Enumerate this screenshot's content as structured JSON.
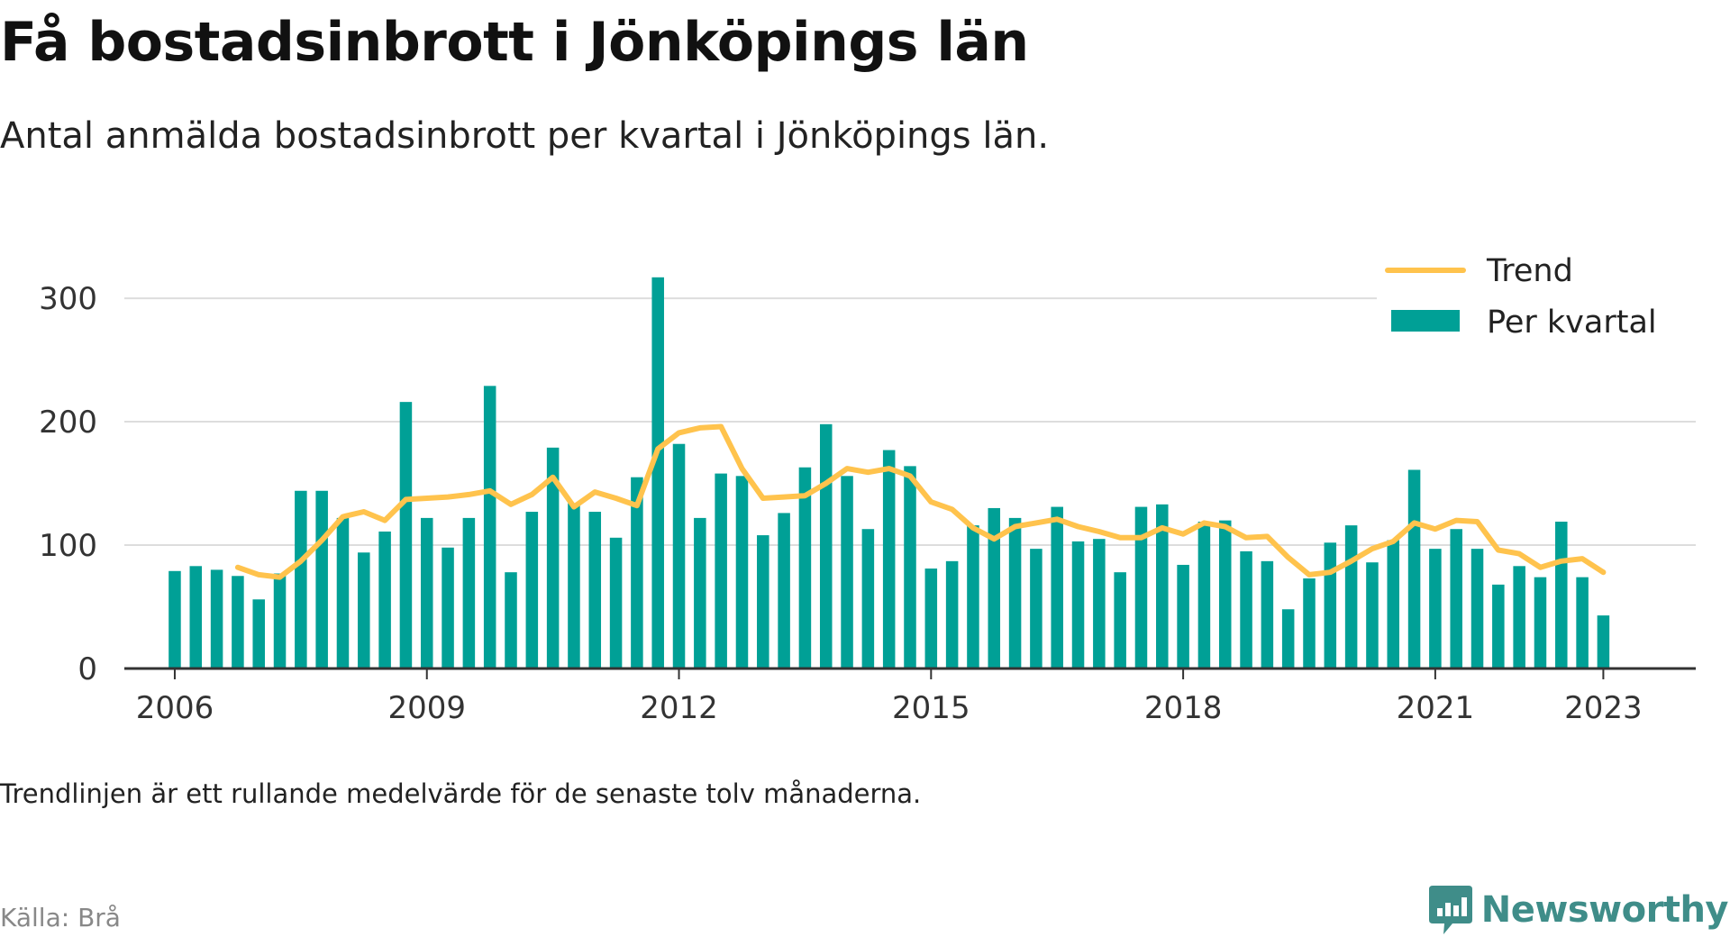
{
  "header": {
    "title": "Få bostadsinbrott i Jönköpings län",
    "subtitle": "Antal anmälda bostadsinbrott per kvartal i Jönköpings län."
  },
  "footer": {
    "note": "Trendlinjen är ett rullande medelvärde för de senaste tolv månaderna.",
    "source": "Källa: Brå",
    "brand": "Newsworthy",
    "brand_icon": "bar-chart-speech-bubble-icon"
  },
  "colors": {
    "bars": "#00a096",
    "trend": "#ffc34d",
    "grid": "#dddddd",
    "axis": "#333333",
    "brand": "#3f8d89"
  },
  "chart_data": {
    "type": "bar",
    "title": "Få bostadsinbrott i Jönköpings län",
    "subtitle": "Antal anmälda bostadsinbrott per kvartal i Jönköpings län.",
    "xlabel": "",
    "ylabel": "",
    "ylim": [
      0,
      330
    ],
    "xlim": [
      2005.4,
      2024.1
    ],
    "yticks": [
      0,
      100,
      200,
      300
    ],
    "xticks": [
      {
        "value": 2006,
        "label": "2006"
      },
      {
        "value": 2009,
        "label": "2009"
      },
      {
        "value": 2012,
        "label": "2012"
      },
      {
        "value": 2015,
        "label": "2015"
      },
      {
        "value": 2018,
        "label": "2018"
      },
      {
        "value": 2021,
        "label": "2021"
      },
      {
        "value": 2023,
        "label": "2023"
      }
    ],
    "grid": true,
    "legend_position": "top-right",
    "categories": [
      "2006 Q1",
      "2006 Q2",
      "2006 Q3",
      "2006 Q4",
      "2007 Q1",
      "2007 Q2",
      "2007 Q3",
      "2007 Q4",
      "2008 Q1",
      "2008 Q2",
      "2008 Q3",
      "2008 Q4",
      "2009 Q1",
      "2009 Q2",
      "2009 Q3",
      "2009 Q4",
      "2010 Q1",
      "2010 Q2",
      "2010 Q3",
      "2010 Q4",
      "2011 Q1",
      "2011 Q2",
      "2011 Q3",
      "2011 Q4",
      "2012 Q1",
      "2012 Q2",
      "2012 Q3",
      "2012 Q4",
      "2013 Q1",
      "2013 Q2",
      "2013 Q3",
      "2013 Q4",
      "2014 Q1",
      "2014 Q2",
      "2014 Q3",
      "2014 Q4",
      "2015 Q1",
      "2015 Q2",
      "2015 Q3",
      "2015 Q4",
      "2016 Q1",
      "2016 Q2",
      "2016 Q3",
      "2016 Q4",
      "2017 Q1",
      "2017 Q2",
      "2017 Q3",
      "2017 Q4",
      "2018 Q1",
      "2018 Q2",
      "2018 Q3",
      "2018 Q4",
      "2019 Q1",
      "2019 Q2",
      "2019 Q3",
      "2019 Q4",
      "2020 Q1",
      "2020 Q2",
      "2020 Q3",
      "2020 Q4",
      "2021 Q1",
      "2021 Q2",
      "2021 Q3",
      "2021 Q4",
      "2022 Q1",
      "2022 Q2",
      "2022 Q3",
      "2022 Q4",
      "2023 Q1"
    ],
    "series": [
      {
        "name": "Per kvartal",
        "kind": "bar",
        "values": [
          79,
          83,
          80,
          75,
          56,
          77,
          144,
          144,
          122,
          94,
          111,
          216,
          122,
          98,
          122,
          229,
          78,
          127,
          179,
          134,
          127,
          106,
          155,
          317,
          182,
          122,
          158,
          156,
          108,
          126,
          163,
          198,
          156,
          113,
          177,
          164,
          81,
          87,
          116,
          130,
          122,
          97,
          131,
          103,
          105,
          78,
          131,
          133,
          84,
          119,
          120,
          95,
          87,
          48,
          73,
          102,
          116,
          86,
          104,
          161,
          97,
          113,
          97,
          68,
          83,
          74,
          119,
          74,
          43
        ]
      },
      {
        "name": "Trend",
        "kind": "line",
        "x": [
          2006.75,
          2007.0,
          2007.25,
          2007.5,
          2007.75,
          2008.0,
          2008.25,
          2008.5,
          2008.75,
          2009.0,
          2009.25,
          2009.5,
          2009.75,
          2010.0,
          2010.25,
          2010.5,
          2010.75,
          2011.0,
          2011.25,
          2011.5,
          2011.75,
          2012.0,
          2012.25,
          2012.5,
          2012.75,
          2013.0,
          2013.25,
          2013.5,
          2013.75,
          2014.0,
          2014.25,
          2014.5,
          2014.75,
          2015.0,
          2015.25,
          2015.5,
          2015.75,
          2016.0,
          2016.25,
          2016.5,
          2016.75,
          2017.0,
          2017.25,
          2017.5,
          2017.75,
          2018.0,
          2018.25,
          2018.5,
          2018.75,
          2019.0,
          2019.25,
          2019.5,
          2019.75,
          2020.0,
          2020.25,
          2020.5,
          2020.75,
          2021.0,
          2021.25,
          2021.5,
          2021.75,
          2022.0,
          2022.25,
          2022.5,
          2022.75,
          2023.0
        ],
        "values": [
          82,
          76,
          74,
          87,
          104,
          123,
          127,
          120,
          137,
          138,
          139,
          141,
          144,
          133,
          141,
          155,
          131,
          143,
          138,
          132,
          178,
          191,
          195,
          196,
          162,
          138,
          139,
          140,
          150,
          162,
          159,
          162,
          156,
          135,
          129,
          114,
          105,
          115,
          118,
          121,
          115,
          111,
          106,
          106,
          114,
          109,
          118,
          115,
          106,
          107,
          90,
          76,
          78,
          87,
          97,
          103,
          118,
          113,
          120,
          119,
          96,
          93,
          82,
          87,
          89,
          78
        ]
      }
    ]
  }
}
